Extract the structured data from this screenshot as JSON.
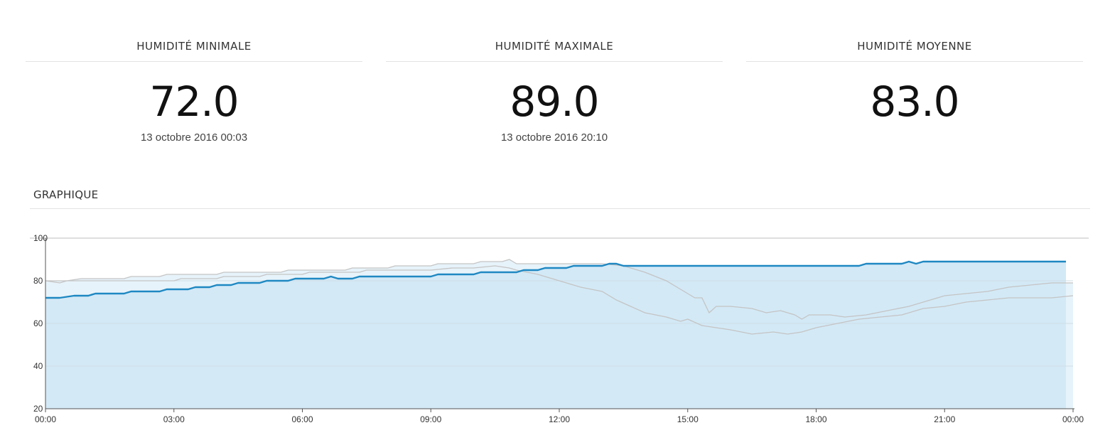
{
  "stats": [
    {
      "title": "HUMIDITÉ MINIMALE",
      "value": "72.0",
      "date": "13 octobre 2016 00:03"
    },
    {
      "title": "HUMIDITÉ MAXIMALE",
      "value": "89.0",
      "date": "13 octobre 2016 20:10"
    },
    {
      "title": "HUMIDITÉ MOYENNE",
      "value": "83.0",
      "date": ""
    }
  ],
  "section_title": "GRAPHIQUE",
  "colors": {
    "primary": "#1e88c2",
    "fill_primary": "#d3e9f6",
    "fill_band": "#e7f3fa",
    "grey_line": "#c4c4c4",
    "grid": "#cfdde6"
  },
  "chart_data": {
    "type": "line",
    "xlim": [
      "00:00",
      "24:00"
    ],
    "ylim": [
      20,
      100
    ],
    "x_ticks": [
      "00:00",
      "03:00",
      "06:00",
      "09:00",
      "12:00",
      "15:00",
      "18:00",
      "21:00",
      "00:00"
    ],
    "y_ticks": [
      20,
      40,
      60,
      80,
      100
    ],
    "grid": true,
    "legend": "none",
    "series": [
      {
        "role": "current",
        "style": "blue line with filled area",
        "points": [
          [
            "00:00",
            72
          ],
          [
            "00:20",
            72
          ],
          [
            "00:40",
            73
          ],
          [
            "01:00",
            73
          ],
          [
            "01:10",
            74
          ],
          [
            "01:50",
            74
          ],
          [
            "02:00",
            75
          ],
          [
            "02:40",
            75
          ],
          [
            "02:50",
            76
          ],
          [
            "03:20",
            76
          ],
          [
            "03:30",
            77
          ],
          [
            "03:50",
            77
          ],
          [
            "04:00",
            78
          ],
          [
            "04:20",
            78
          ],
          [
            "04:30",
            79
          ],
          [
            "05:00",
            79
          ],
          [
            "05:10",
            80
          ],
          [
            "05:40",
            80
          ],
          [
            "05:50",
            81
          ],
          [
            "06:30",
            81
          ],
          [
            "06:40",
            82
          ],
          [
            "06:50",
            81
          ],
          [
            "07:10",
            81
          ],
          [
            "07:20",
            82
          ],
          [
            "09:00",
            82
          ],
          [
            "09:10",
            83
          ],
          [
            "10:00",
            83
          ],
          [
            "10:10",
            84
          ],
          [
            "11:00",
            84
          ],
          [
            "11:10",
            85
          ],
          [
            "11:30",
            85
          ],
          [
            "11:40",
            86
          ],
          [
            "12:10",
            86
          ],
          [
            "12:20",
            87
          ],
          [
            "13:00",
            87
          ],
          [
            "13:10",
            88
          ],
          [
            "13:20",
            88
          ],
          [
            "13:30",
            87
          ],
          [
            "19:00",
            87
          ],
          [
            "19:10",
            88
          ],
          [
            "20:00",
            88
          ],
          [
            "20:10",
            89
          ],
          [
            "20:20",
            88
          ],
          [
            "20:30",
            89
          ],
          [
            "23:50",
            89
          ]
        ]
      },
      {
        "role": "comparison-high",
        "style": "grey line, light fill band",
        "points": [
          [
            "00:00",
            80
          ],
          [
            "00:30",
            80
          ],
          [
            "00:50",
            81
          ],
          [
            "01:50",
            81
          ],
          [
            "02:00",
            82
          ],
          [
            "02:40",
            82
          ],
          [
            "02:50",
            83
          ],
          [
            "04:00",
            83
          ],
          [
            "04:10",
            84
          ],
          [
            "05:30",
            84
          ],
          [
            "05:40",
            85
          ],
          [
            "07:00",
            85
          ],
          [
            "07:10",
            86
          ],
          [
            "08:00",
            86
          ],
          [
            "08:10",
            87
          ],
          [
            "09:00",
            87
          ],
          [
            "09:10",
            88
          ],
          [
            "10:00",
            88
          ],
          [
            "10:10",
            89
          ],
          [
            "10:40",
            89
          ],
          [
            "10:50",
            90
          ],
          [
            "11:00",
            88
          ],
          [
            "13:00",
            88
          ],
          [
            "13:30",
            87
          ],
          [
            "14:00",
            84
          ],
          [
            "14:30",
            80
          ],
          [
            "14:50",
            76
          ],
          [
            "15:10",
            72
          ],
          [
            "15:20",
            72
          ],
          [
            "15:30",
            65
          ],
          [
            "15:40",
            68
          ],
          [
            "16:00",
            68
          ],
          [
            "16:30",
            67
          ],
          [
            "16:50",
            65
          ],
          [
            "17:10",
            66
          ],
          [
            "17:30",
            64
          ],
          [
            "17:40",
            62
          ],
          [
            "17:50",
            64
          ],
          [
            "18:20",
            64
          ],
          [
            "18:40",
            63
          ],
          [
            "19:10",
            64
          ],
          [
            "19:40",
            66
          ],
          [
            "20:10",
            68
          ],
          [
            "20:40",
            71
          ],
          [
            "21:00",
            73
          ],
          [
            "21:30",
            74
          ],
          [
            "22:00",
            75
          ],
          [
            "22:30",
            77
          ],
          [
            "23:00",
            78
          ],
          [
            "23:30",
            79
          ],
          [
            "24:00",
            79
          ]
        ]
      },
      {
        "role": "comparison-low",
        "style": "grey line",
        "points": [
          [
            "00:00",
            80
          ],
          [
            "00:20",
            79
          ],
          [
            "00:30",
            80
          ],
          [
            "01:00",
            80
          ],
          [
            "03:00",
            80
          ],
          [
            "03:10",
            81
          ],
          [
            "04:00",
            81
          ],
          [
            "04:10",
            82
          ],
          [
            "05:00",
            82
          ],
          [
            "05:10",
            83
          ],
          [
            "06:00",
            83
          ],
          [
            "06:10",
            84
          ],
          [
            "07:20",
            84
          ],
          [
            "07:30",
            85
          ],
          [
            "09:00",
            85
          ],
          [
            "09:30",
            86
          ],
          [
            "10:00",
            86
          ],
          [
            "10:30",
            87
          ],
          [
            "10:50",
            86
          ],
          [
            "11:00",
            85
          ],
          [
            "11:30",
            83
          ],
          [
            "12:00",
            80
          ],
          [
            "12:30",
            77
          ],
          [
            "13:00",
            75
          ],
          [
            "13:20",
            71
          ],
          [
            "13:40",
            68
          ],
          [
            "14:00",
            65
          ],
          [
            "14:30",
            63
          ],
          [
            "14:50",
            61
          ],
          [
            "15:00",
            62
          ],
          [
            "15:20",
            59
          ],
          [
            "15:40",
            58
          ],
          [
            "16:00",
            57
          ],
          [
            "16:30",
            55
          ],
          [
            "17:00",
            56
          ],
          [
            "17:20",
            55
          ],
          [
            "17:40",
            56
          ],
          [
            "18:00",
            58
          ],
          [
            "18:30",
            60
          ],
          [
            "19:00",
            62
          ],
          [
            "19:30",
            63
          ],
          [
            "20:00",
            64
          ],
          [
            "20:30",
            67
          ],
          [
            "21:00",
            68
          ],
          [
            "21:30",
            70
          ],
          [
            "22:00",
            71
          ],
          [
            "22:30",
            72
          ],
          [
            "23:00",
            72
          ],
          [
            "23:30",
            72
          ],
          [
            "24:00",
            73
          ]
        ]
      }
    ]
  }
}
